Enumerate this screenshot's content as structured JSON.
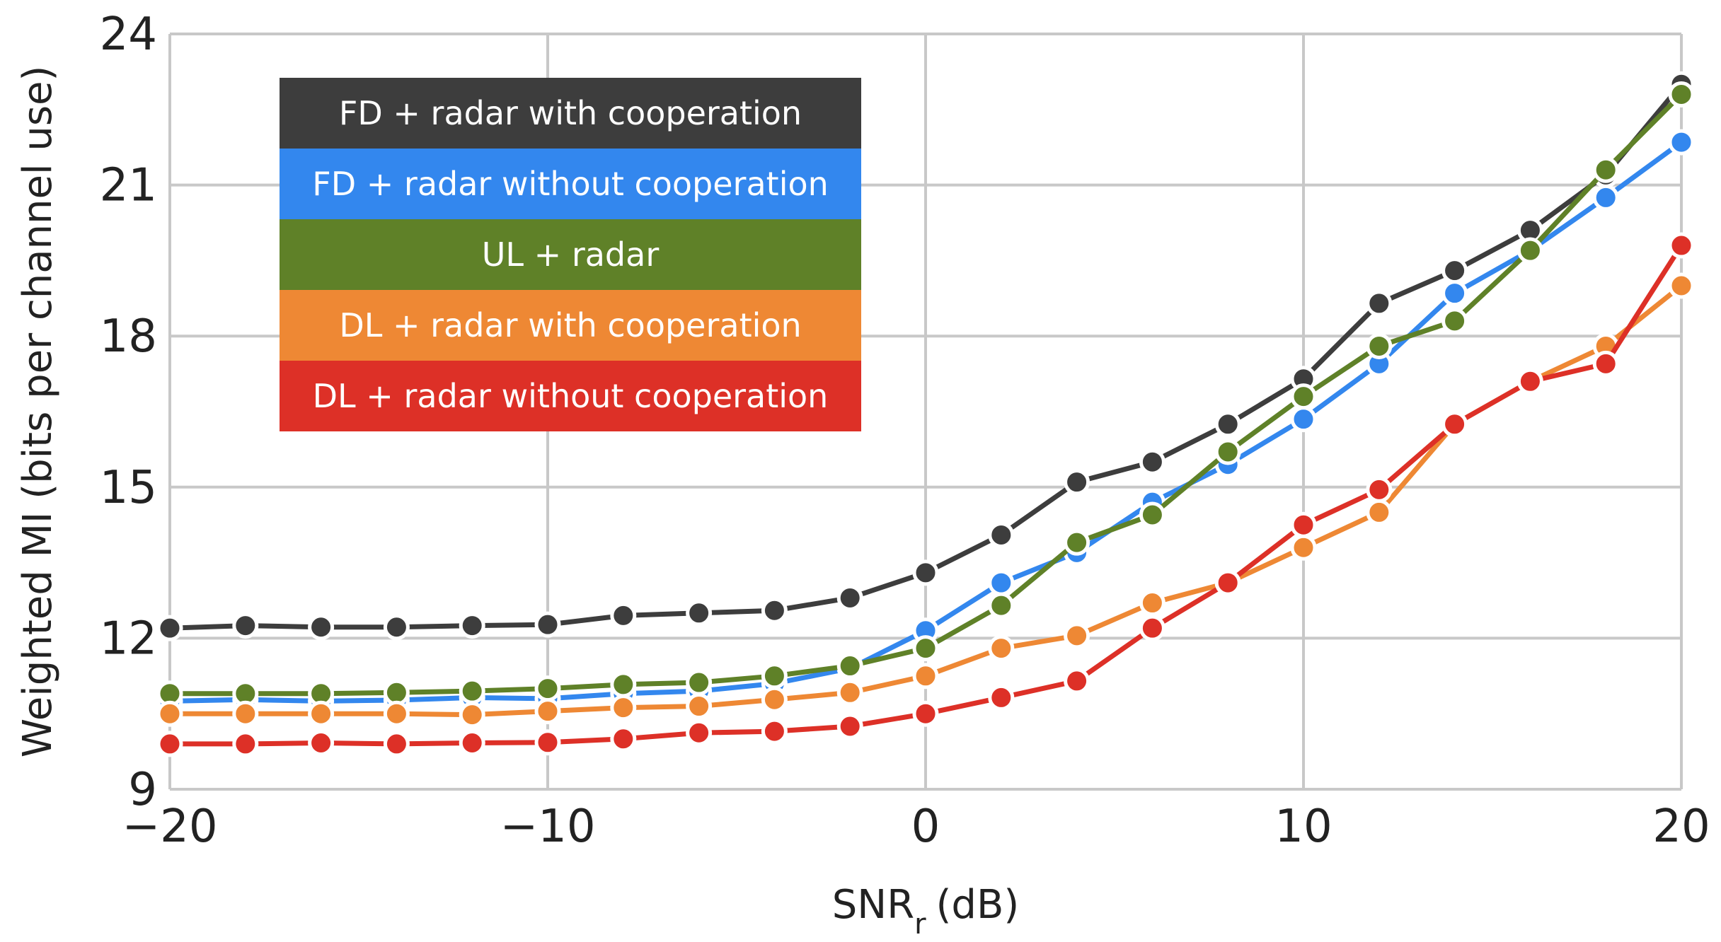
{
  "chart_data": {
    "type": "line",
    "xlabel": "SNR",
    "xlabel_sub": "r",
    "xlabel_unit": "(dB)",
    "ylabel": "Weighted MI (bits per channel use)",
    "xlim": [
      -20,
      20
    ],
    "ylim": [
      9,
      24
    ],
    "xticks": [
      -20,
      -10,
      0,
      10,
      20
    ],
    "yticks": [
      9,
      12,
      15,
      18,
      21,
      24
    ],
    "xtick_labels": [
      "−20",
      "−10",
      "0",
      "10",
      "20"
    ],
    "ytick_labels": [
      "9",
      "12",
      "15",
      "18",
      "21",
      "24"
    ],
    "grid": true,
    "legend_position": "top-left",
    "x": [
      -20,
      -18,
      -16,
      -14,
      -12,
      -10,
      -8,
      -6,
      -4,
      -2,
      0,
      2,
      4,
      6,
      8,
      10,
      12,
      14,
      16,
      18,
      20
    ],
    "series": [
      {
        "name": "FD + radar with cooperation",
        "color": "#3d3d3d",
        "values": [
          12.2,
          12.25,
          12.22,
          12.22,
          12.25,
          12.27,
          12.45,
          12.5,
          12.55,
          12.8,
          13.3,
          14.05,
          15.1,
          15.5,
          16.25,
          17.15,
          18.65,
          19.3,
          20.1,
          21.2,
          23.0
        ]
      },
      {
        "name": "FD + radar without cooperation",
        "color": "#3387ee",
        "values": [
          10.75,
          10.78,
          10.75,
          10.77,
          10.82,
          10.8,
          10.9,
          10.95,
          11.1,
          11.4,
          12.15,
          13.1,
          13.7,
          14.7,
          15.45,
          16.35,
          17.45,
          18.85,
          19.7,
          20.75,
          21.85
        ]
      },
      {
        "name": "UL + radar",
        "color": "#5f8128",
        "values": [
          10.9,
          10.9,
          10.9,
          10.92,
          10.95,
          11.0,
          11.08,
          11.12,
          11.25,
          11.45,
          11.8,
          12.65,
          13.9,
          14.45,
          15.7,
          16.8,
          17.8,
          18.3,
          19.7,
          21.3,
          22.8
        ]
      },
      {
        "name": "DL + radar with cooperation",
        "color": "#ee8834",
        "values": [
          10.5,
          10.5,
          10.5,
          10.5,
          10.48,
          10.55,
          10.62,
          10.65,
          10.78,
          10.92,
          11.25,
          11.8,
          12.05,
          12.7,
          13.1,
          13.8,
          14.5,
          16.25,
          17.1,
          17.8,
          19.0
        ]
      },
      {
        "name": "DL + radar without cooperation",
        "color": "#dd3027",
        "values": [
          9.9,
          9.9,
          9.92,
          9.9,
          9.92,
          9.93,
          10.0,
          10.12,
          10.15,
          10.25,
          10.5,
          10.82,
          11.15,
          12.2,
          13.1,
          14.25,
          14.95,
          16.25,
          17.1,
          17.45,
          19.8
        ]
      }
    ]
  }
}
